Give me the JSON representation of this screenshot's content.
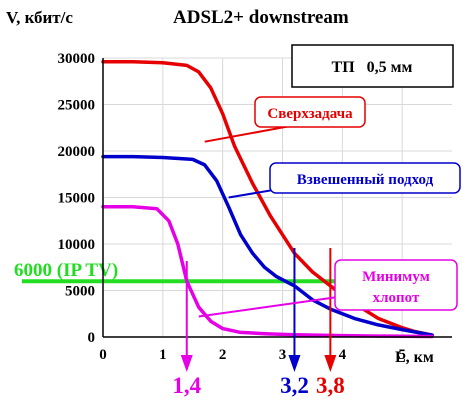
{
  "chart_data": {
    "type": "line",
    "title": "ADSL2+ downstream",
    "ylabel": "V, кбит/с",
    "xlabel": "L, км",
    "xlim": [
      0,
      5.9
    ],
    "ylim": [
      0,
      30000
    ],
    "x_ticks": [
      0,
      1,
      2,
      3,
      4,
      5
    ],
    "y_ticks": [
      0,
      5000,
      10000,
      15000,
      20000,
      25000,
      30000
    ],
    "grid": true,
    "note_box": "ТП   0,5 мм",
    "series": [
      {
        "name": "Сверхзадача",
        "color": "#e60000",
        "x": [
          0,
          0.5,
          1.0,
          1.4,
          1.6,
          1.8,
          2.0,
          2.2,
          2.5,
          2.8,
          3.0,
          3.2,
          3.5,
          3.8,
          4.0,
          4.3,
          4.6,
          5.0,
          5.2,
          5.5
        ],
        "y": [
          29600,
          29600,
          29500,
          29200,
          28500,
          26800,
          24000,
          20500,
          16500,
          13000,
          11000,
          9000,
          7000,
          5500,
          4500,
          3200,
          2000,
          1000,
          600,
          200
        ]
      },
      {
        "name": "Взвешенный подход",
        "color": "#0000cc",
        "x": [
          0,
          0.5,
          1.0,
          1.5,
          1.7,
          1.9,
          2.1,
          2.3,
          2.5,
          2.7,
          2.9,
          3.2,
          3.5,
          3.8,
          4.2,
          4.6,
          5.0,
          5.5
        ],
        "y": [
          19400,
          19400,
          19300,
          19100,
          18500,
          16800,
          14000,
          11000,
          9000,
          7500,
          6500,
          5500,
          4000,
          3000,
          2000,
          1300,
          800,
          200
        ]
      },
      {
        "name": "Минимум хлопот",
        "color": "#e600e6",
        "x": [
          0,
          0.5,
          0.9,
          1.1,
          1.25,
          1.4,
          1.6,
          1.8,
          2.0,
          2.3,
          2.7,
          3.2,
          4.0,
          5.0,
          5.5
        ],
        "y": [
          14000,
          14000,
          13800,
          12500,
          10000,
          6000,
          3200,
          1700,
          900,
          500,
          350,
          250,
          150,
          80,
          50
        ]
      }
    ],
    "threshold": {
      "label": "6000 (IP TV)",
      "value": 6000,
      "color": "#22dd22"
    },
    "markers": [
      {
        "label": "1,4",
        "value": 1.4,
        "color": "#e600e6"
      },
      {
        "label": "3,2",
        "value": 3.2,
        "color": "#0000cc"
      },
      {
        "label": "3,8",
        "value": 3.8,
        "color": "#e60000"
      }
    ],
    "callouts": [
      {
        "lines": [
          "Сверхзадача"
        ],
        "color": "#e60000",
        "series": 0
      },
      {
        "lines": [
          "Взвешенный подход"
        ],
        "color": "#0000cc",
        "series": 1
      },
      {
        "lines": [
          "Минимум",
          "хлопот"
        ],
        "color": "#e600e6",
        "series": 2
      }
    ]
  }
}
